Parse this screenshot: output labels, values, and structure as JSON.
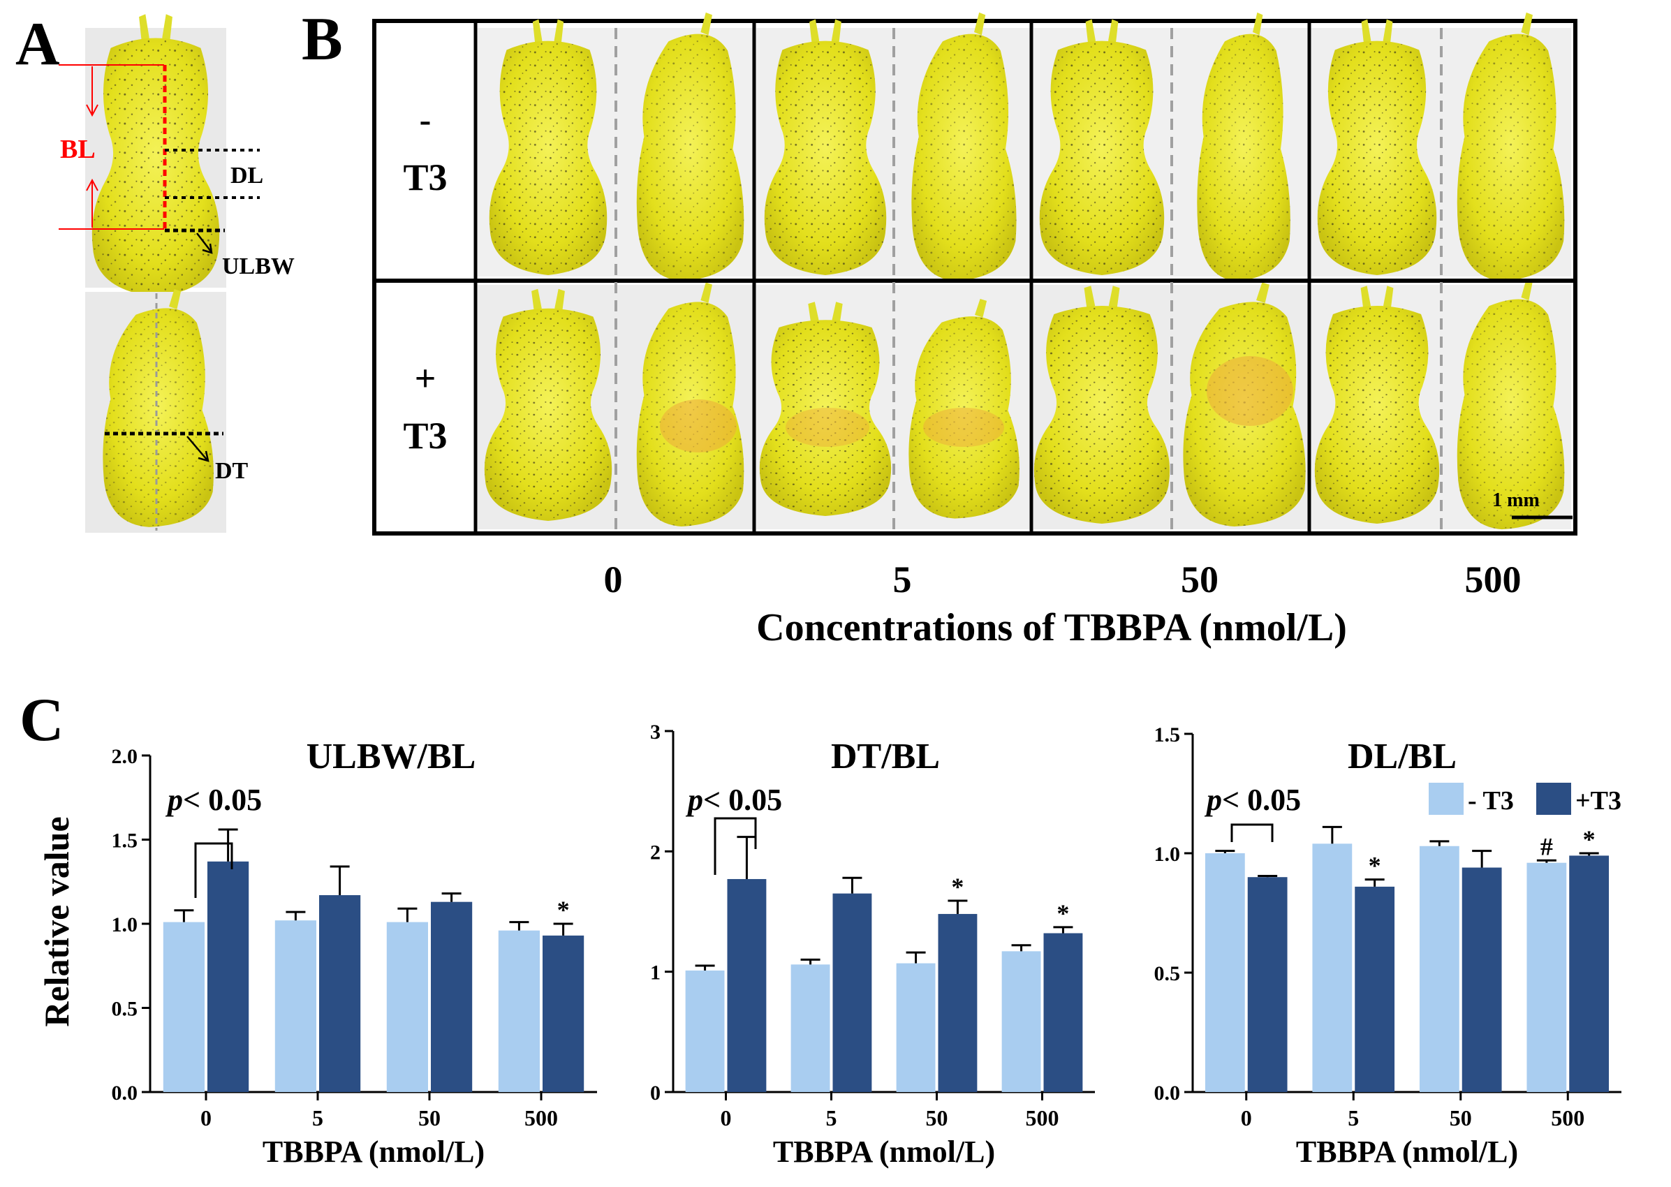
{
  "panel_a": {
    "letter": "A",
    "labels": {
      "bl": "BL",
      "dl": "DL",
      "ulbw": "ULBW",
      "dt": "DT"
    }
  },
  "panel_b": {
    "letter": "B",
    "row_labels": [
      {
        "sign": "-",
        "name": "T3"
      },
      {
        "sign": "+",
        "name": "T3"
      }
    ],
    "concentrations": [
      "0",
      "5",
      "50",
      "500"
    ],
    "xlabel": "Concentrations of TBBPA (nmol/L)",
    "scale_bar": "1 mm"
  },
  "panel_c": {
    "letter": "C",
    "ylabel": "Relative value",
    "legend": [
      "- T3",
      "+T3"
    ],
    "colors": {
      "minus_t3": "#a9cdf0",
      "plus_t3": "#2b4e84"
    }
  },
  "chart_data": [
    {
      "type": "bar",
      "title": "ULBW/BL",
      "xlabel": "TBBPA (nmol/L)",
      "ylabel": "Relative value",
      "categories": [
        "0",
        "5",
        "50",
        "500"
      ],
      "ylim": [
        0,
        2.0
      ],
      "yticks": [
        "0.0",
        "0.5",
        "1.0",
        "1.5",
        "2.0"
      ],
      "ytick_values": [
        0,
        0.5,
        1.0,
        1.5,
        2.0
      ],
      "series": [
        {
          "name": "- T3",
          "values": [
            1.01,
            1.02,
            1.01,
            0.96
          ],
          "errors": [
            0.07,
            0.05,
            0.08,
            0.05
          ],
          "marks": [
            "",
            "",
            "",
            ""
          ]
        },
        {
          "name": "+T3",
          "values": [
            1.37,
            1.17,
            1.13,
            0.93
          ],
          "errors": [
            0.19,
            0.17,
            0.05,
            0.07
          ],
          "marks": [
            "",
            "",
            "",
            "*"
          ]
        }
      ],
      "annotation": "p< 0.05"
    },
    {
      "type": "bar",
      "title": "DT/BL",
      "xlabel": "TBBPA (nmol/L)",
      "ylabel": "",
      "categories": [
        "0",
        "5",
        "50",
        "500"
      ],
      "ylim": [
        0,
        3
      ],
      "yticks": [
        "0",
        "1",
        "2",
        "3"
      ],
      "ytick_values": [
        0,
        1,
        2,
        3
      ],
      "series": [
        {
          "name": "- T3",
          "values": [
            1.01,
            1.06,
            1.07,
            1.17
          ],
          "errors": [
            0.04,
            0.04,
            0.09,
            0.05
          ],
          "marks": [
            "",
            "",
            "",
            ""
          ]
        },
        {
          "name": "+T3",
          "values": [
            1.77,
            1.65,
            1.48,
            1.32
          ],
          "errors": [
            0.35,
            0.13,
            0.11,
            0.05
          ],
          "marks": [
            "",
            "",
            "*",
            "*"
          ]
        }
      ],
      "annotation": "p< 0.05"
    },
    {
      "type": "bar",
      "title": "DL/BL",
      "xlabel": "TBBPA (nmol/L)",
      "ylabel": "",
      "categories": [
        "0",
        "5",
        "50",
        "500"
      ],
      "ylim": [
        0,
        1.5
      ],
      "yticks": [
        "0.0",
        "0.5",
        "1.0",
        "1.5"
      ],
      "ytick_values": [
        0,
        0.5,
        1.0,
        1.5
      ],
      "series": [
        {
          "name": "- T3",
          "values": [
            1.0,
            1.04,
            1.03,
            0.96
          ],
          "errors": [
            0.01,
            0.07,
            0.02,
            0.01
          ],
          "marks": [
            "",
            "",
            "",
            "#"
          ]
        },
        {
          "name": "+T3",
          "values": [
            0.9,
            0.86,
            0.94,
            0.99
          ],
          "errors": [
            0.005,
            0.03,
            0.07,
            0.01
          ],
          "marks": [
            "",
            "*",
            "",
            "*"
          ]
        }
      ],
      "annotation": "p< 0.05"
    }
  ]
}
